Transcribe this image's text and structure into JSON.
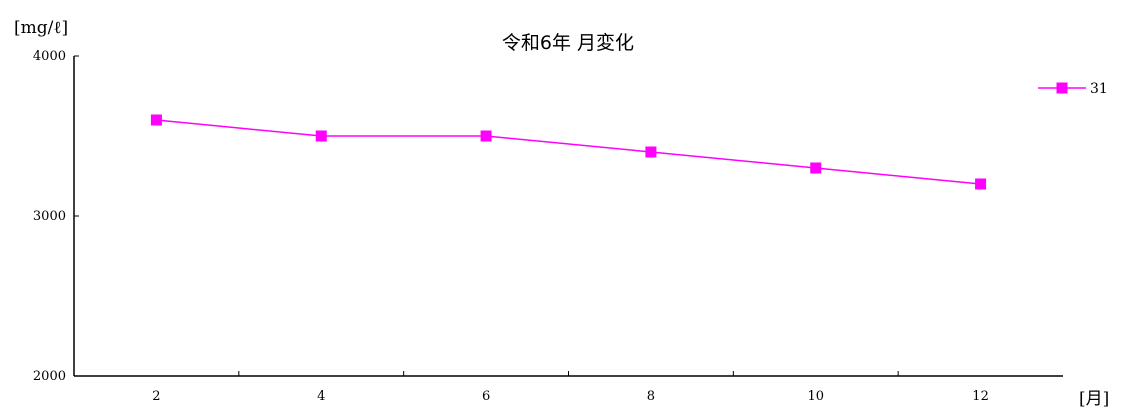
{
  "chart_data": {
    "type": "line",
    "title": "令和6年 月変化",
    "ylabel": "[mg/ℓ]",
    "xlabel": "[月]",
    "categories": [
      "2",
      "4",
      "6",
      "8",
      "10",
      "12"
    ],
    "x": [
      2,
      4,
      6,
      8,
      10,
      12
    ],
    "xlim": [
      1,
      13
    ],
    "ylim": [
      2000,
      4000
    ],
    "y_ticks": [
      2000,
      3000,
      4000
    ],
    "series": [
      {
        "name": "31",
        "values": [
          3600,
          3500,
          3500,
          3400,
          3300,
          3200
        ],
        "color": "#ff00ff",
        "marker": "square"
      }
    ],
    "grid": false,
    "legend_position": "top-right"
  }
}
